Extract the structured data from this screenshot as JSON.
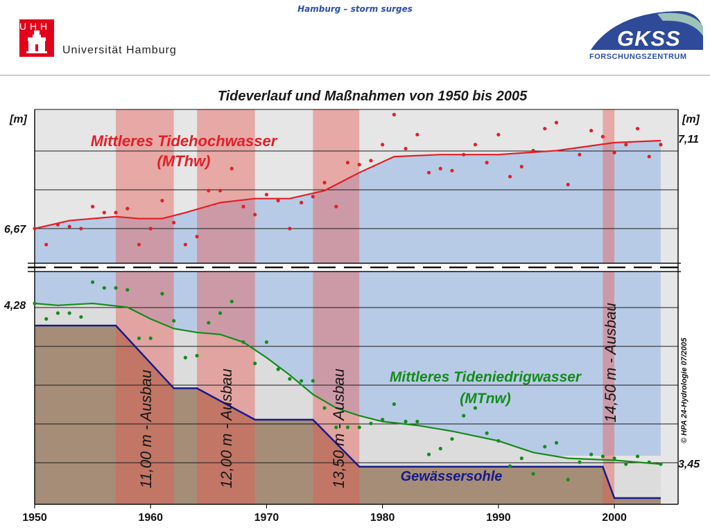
{
  "header": {
    "title": "Hamburg – storm surges",
    "uhh_logo_text": "U H H",
    "university_name": "Universität Hamburg",
    "gkss_name": "GKSS",
    "gkss_sub": "FORSCHUNGSZENTRUM"
  },
  "chart_data": {
    "type": "line",
    "title": "Tideverlauf und Maßnahmen von 1950 bis 2005",
    "ylabel_left": "[m]",
    "ylabel_right": "[m]",
    "x_ticks": [
      "1950",
      "1960",
      "1970",
      "1980",
      "1990",
      "2000"
    ],
    "xlim": [
      1950,
      2005
    ],
    "y_labels": {
      "mthw_start": "6,67",
      "mthw_end": "7,11",
      "mtnw_start": "4,28",
      "mtnw_end": "3,45"
    },
    "grid": true,
    "broken_axis": true,
    "ausbau_periods": [
      {
        "start": 1957,
        "end": 1962,
        "label": "11,00 m - Ausbau"
      },
      {
        "start": 1964,
        "end": 1969,
        "label": "12,00 m - Ausbau"
      },
      {
        "start": 1974,
        "end": 1978,
        "label": "13,50 m - Ausbau"
      },
      {
        "start": 1999,
        "end": 2000,
        "label": "14,50 m - Ausbau"
      }
    ],
    "series": [
      {
        "name": "Mittleres Tidehochwasser",
        "short": "(MThw)",
        "color": "#e21f26",
        "unit_range": [
          6.67,
          7.11
        ],
        "trend_x": [
          1950,
          1953,
          1957,
          1959,
          1961,
          1963,
          1966,
          1969,
          1972,
          1975,
          1978,
          1981,
          1985,
          1990,
          1995,
          2000,
          2004
        ],
        "trend_y": [
          6.67,
          6.71,
          6.73,
          6.72,
          6.72,
          6.75,
          6.8,
          6.82,
          6.82,
          6.86,
          6.95,
          7.03,
          7.04,
          7.04,
          7.06,
          7.1,
          7.11
        ],
        "points_x": [
          1950,
          1951,
          1952,
          1953,
          1954,
          1955,
          1956,
          1957,
          1958,
          1959,
          1960,
          1961,
          1962,
          1963,
          1964,
          1965,
          1966,
          1967,
          1968,
          1969,
          1970,
          1971,
          1972,
          1973,
          1974,
          1975,
          1976,
          1977,
          1978,
          1979,
          1980,
          1981,
          1982,
          1983,
          1984,
          1985,
          1986,
          1987,
          1988,
          1989,
          1990,
          1991,
          1992,
          1993,
          1994,
          1995,
          1996,
          1997,
          1998,
          1999,
          2000,
          2001,
          2002,
          2003,
          2004
        ],
        "points_y": [
          6.67,
          6.59,
          6.69,
          6.68,
          6.67,
          6.78,
          6.75,
          6.75,
          6.77,
          6.59,
          6.67,
          6.81,
          6.7,
          6.59,
          6.63,
          6.86,
          6.86,
          6.97,
          6.78,
          6.74,
          6.84,
          6.81,
          6.67,
          6.8,
          6.83,
          6.9,
          6.78,
          7.0,
          6.99,
          7.01,
          7.09,
          7.24,
          7.07,
          7.14,
          6.95,
          6.97,
          6.96,
          7.04,
          7.09,
          7.0,
          7.14,
          6.93,
          6.98,
          7.06,
          7.17,
          7.2,
          6.89,
          7.04,
          7.16,
          7.13,
          7.05,
          7.09,
          7.17,
          7.03,
          7.09
        ]
      },
      {
        "name": "Mittleres Tideniedrigwasser",
        "short": "(MTnw)",
        "color": "#138c1b",
        "unit_range": [
          3.45,
          4.28
        ],
        "trend_x": [
          1950,
          1952,
          1955,
          1958,
          1960,
          1962,
          1964,
          1966,
          1968,
          1970,
          1972,
          1974,
          1976,
          1978,
          1980,
          1983,
          1986,
          1990,
          1993,
          1996,
          2000,
          2004
        ],
        "trend_y": [
          4.28,
          4.27,
          4.28,
          4.26,
          4.2,
          4.15,
          4.13,
          4.12,
          4.08,
          4.0,
          3.91,
          3.81,
          3.74,
          3.7,
          3.67,
          3.65,
          3.62,
          3.57,
          3.51,
          3.48,
          3.47,
          3.45
        ],
        "points_x": [
          1950,
          1951,
          1952,
          1953,
          1954,
          1955,
          1956,
          1957,
          1958,
          1959,
          1960,
          1961,
          1962,
          1963,
          1964,
          1965,
          1966,
          1967,
          1968,
          1969,
          1970,
          1971,
          1972,
          1973,
          1974,
          1975,
          1976,
          1977,
          1978,
          1979,
          1980,
          1981,
          1982,
          1983,
          1984,
          1985,
          1986,
          1987,
          1988,
          1989,
          1990,
          1991,
          1992,
          1993,
          1994,
          1995,
          1996,
          1997,
          1998,
          1999,
          2000,
          2001,
          2002,
          2003,
          2004
        ],
        "points_y": [
          4.28,
          4.2,
          4.23,
          4.23,
          4.21,
          4.39,
          4.36,
          4.36,
          4.35,
          4.1,
          4.1,
          4.33,
          4.19,
          4.0,
          4.01,
          4.18,
          4.23,
          4.29,
          4.08,
          3.97,
          4.08,
          3.94,
          3.89,
          3.88,
          3.88,
          3.74,
          3.64,
          3.64,
          3.64,
          3.66,
          3.68,
          3.76,
          3.67,
          3.67,
          3.5,
          3.53,
          3.58,
          3.7,
          3.74,
          3.61,
          3.57,
          3.44,
          3.48,
          3.4,
          3.54,
          3.56,
          3.37,
          3.46,
          3.5,
          3.49,
          3.48,
          3.45,
          3.49,
          3.46,
          3.45
        ]
      },
      {
        "name": "Gewässersohle",
        "color": "#161a8c",
        "depth_steps_x": [
          1950,
          1957,
          1962,
          1964,
          1969,
          1974,
          1978,
          1999,
          2000,
          2004
        ],
        "depth_steps_y": [
          -9.0,
          -9.0,
          -11.0,
          -11.0,
          -12.0,
          -12.0,
          -13.5,
          -13.5,
          -14.5,
          -14.5
        ]
      }
    ],
    "copyright": "© HPA 24-Hydrologie 07/2005"
  }
}
